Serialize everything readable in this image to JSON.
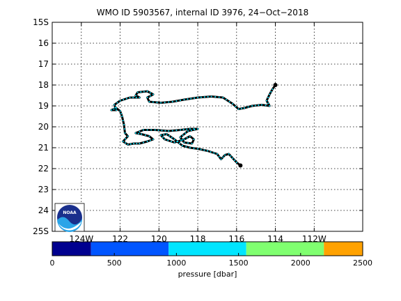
{
  "title": "WMO ID 5903567, internal ID 3976, 24−Oct−2018",
  "map": {
    "lon_range": [
      -125.5,
      -109.5
    ],
    "lat_range": [
      -25,
      -15
    ],
    "lat_ticks": [
      {
        "value": -15,
        "label": "15S"
      },
      {
        "value": -16,
        "label": "16"
      },
      {
        "value": -17,
        "label": "17"
      },
      {
        "value": -18,
        "label": "18"
      },
      {
        "value": -19,
        "label": "19"
      },
      {
        "value": -20,
        "label": "20"
      },
      {
        "value": -21,
        "label": "21"
      },
      {
        "value": -22,
        "label": "22"
      },
      {
        "value": -23,
        "label": "23"
      },
      {
        "value": -24,
        "label": "24"
      },
      {
        "value": -25,
        "label": "25S"
      }
    ],
    "lon_ticks": [
      {
        "value": -124,
        "label": "124W"
      },
      {
        "value": -122,
        "label": "122"
      },
      {
        "value": -120,
        "label": "120"
      },
      {
        "value": -118,
        "label": "118"
      },
      {
        "value": -116,
        "label": "116"
      },
      {
        "value": -114,
        "label": "114"
      },
      {
        "value": -112,
        "label": "112W"
      }
    ],
    "grid": true,
    "logo_icon": "noaa-logo-icon",
    "logo_text": "NOAA"
  },
  "track": {
    "line_color": "#000000",
    "marker_color": "#00e5ff",
    "points": [
      [
        -114.0,
        -18.0
      ],
      [
        -114.15,
        -18.2
      ],
      [
        -114.3,
        -18.45
      ],
      [
        -114.45,
        -18.75
      ],
      [
        -114.3,
        -19.0
      ],
      [
        -114.7,
        -18.95
      ],
      [
        -115.2,
        -19.0
      ],
      [
        -115.6,
        -19.1
      ],
      [
        -115.9,
        -19.15
      ],
      [
        -116.2,
        -18.9
      ],
      [
        -116.7,
        -18.6
      ],
      [
        -117.3,
        -18.55
      ],
      [
        -118.0,
        -18.6
      ],
      [
        -118.7,
        -18.7
      ],
      [
        -119.3,
        -18.8
      ],
      [
        -119.9,
        -18.85
      ],
      [
        -120.5,
        -18.8
      ],
      [
        -120.6,
        -18.6
      ],
      [
        -120.3,
        -18.45
      ],
      [
        -120.6,
        -18.3
      ],
      [
        -121.1,
        -18.35
      ],
      [
        -121.2,
        -18.5
      ],
      [
        -121.0,
        -18.6
      ],
      [
        -121.5,
        -18.6
      ],
      [
        -122.0,
        -18.75
      ],
      [
        -122.3,
        -18.95
      ],
      [
        -122.2,
        -19.2
      ],
      [
        -122.45,
        -19.2
      ],
      [
        -122.2,
        -19.1
      ],
      [
        -122.0,
        -19.25
      ],
      [
        -121.9,
        -19.5
      ],
      [
        -121.8,
        -19.9
      ],
      [
        -121.75,
        -20.3
      ],
      [
        -121.6,
        -20.45
      ],
      [
        -121.85,
        -20.7
      ],
      [
        -121.6,
        -20.85
      ],
      [
        -121.3,
        -20.8
      ],
      [
        -121.0,
        -20.8
      ],
      [
        -120.6,
        -20.7
      ],
      [
        -120.3,
        -20.6
      ],
      [
        -120.5,
        -20.45
      ],
      [
        -120.9,
        -20.35
      ],
      [
        -121.2,
        -20.3
      ],
      [
        -120.8,
        -20.15
      ],
      [
        -120.2,
        -20.15
      ],
      [
        -119.5,
        -20.2
      ],
      [
        -118.9,
        -20.15
      ],
      [
        -118.4,
        -20.1
      ],
      [
        -118.0,
        -20.1
      ],
      [
        -118.5,
        -20.2
      ],
      [
        -118.9,
        -20.5
      ],
      [
        -118.7,
        -20.75
      ],
      [
        -118.3,
        -20.8
      ],
      [
        -118.2,
        -20.6
      ],
      [
        -118.4,
        -20.45
      ],
      [
        -118.7,
        -20.6
      ],
      [
        -119.2,
        -20.75
      ],
      [
        -119.7,
        -20.6
      ],
      [
        -119.9,
        -20.4
      ],
      [
        -119.6,
        -20.35
      ],
      [
        -119.2,
        -20.6
      ],
      [
        -118.8,
        -20.9
      ],
      [
        -118.4,
        -21.0
      ],
      [
        -118.0,
        -21.05
      ],
      [
        -117.5,
        -21.15
      ],
      [
        -117.0,
        -21.3
      ],
      [
        -116.8,
        -21.55
      ],
      [
        -116.6,
        -21.35
      ],
      [
        -116.4,
        -21.3
      ],
      [
        -116.2,
        -21.5
      ],
      [
        -116.0,
        -21.7
      ],
      [
        -115.8,
        -21.85
      ]
    ]
  },
  "colorbar": {
    "label": "pressure [dbar]",
    "min": 0,
    "max": 2500,
    "ticks": [
      "0",
      "500",
      "1000",
      "1500",
      "2000",
      "2500"
    ],
    "segments": [
      {
        "from": 0,
        "to": 312.5,
        "color": "#00008f"
      },
      {
        "from": 312.5,
        "to": 937.5,
        "color": "#0055ff"
      },
      {
        "from": 937.5,
        "to": 1562.5,
        "color": "#00e5ff"
      },
      {
        "from": 1562.5,
        "to": 2187.5,
        "color": "#80ff70"
      },
      {
        "from": 2187.5,
        "to": 2500,
        "color": "#ffa200"
      }
    ]
  }
}
